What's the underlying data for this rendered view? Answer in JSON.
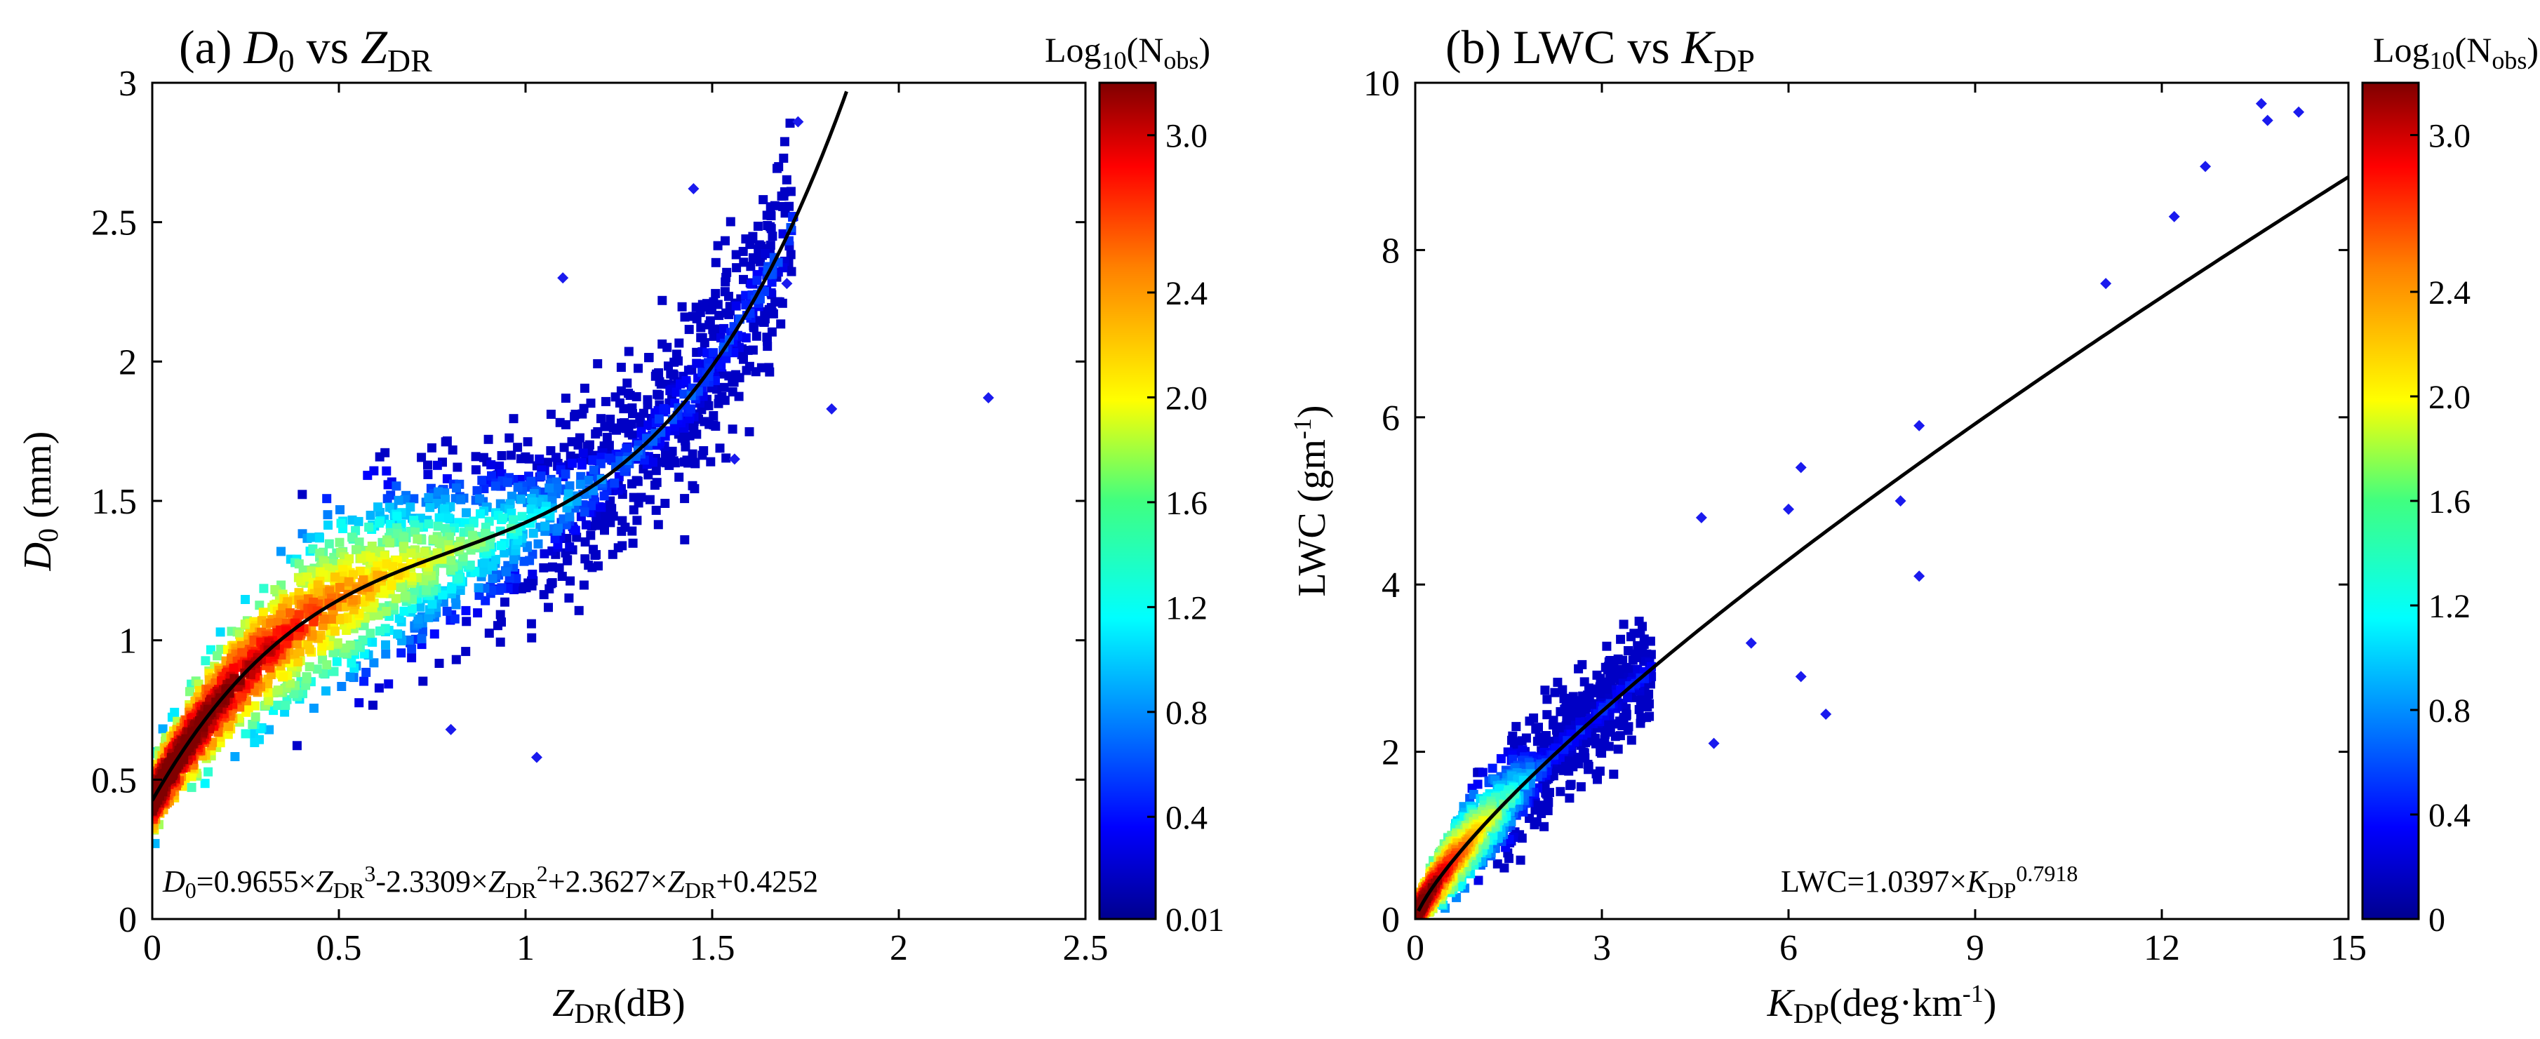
{
  "chart_data": [
    {
      "type": "scatter",
      "panel": "(a)",
      "title": {
        "prefix": "(a) ",
        "a": "D",
        "a_sub": "0",
        "mid": " vs ",
        "b": "Z",
        "b_sub": "DR"
      },
      "xlabel": {
        "main": "Z",
        "sub": "DR",
        "rest": "(dB)"
      },
      "ylabel": {
        "main": "D",
        "sub": "0",
        "rest": " (mm)"
      },
      "xlim": [
        0,
        2.5
      ],
      "ylim": [
        0,
        3
      ],
      "xticks": [
        0,
        0.5,
        1,
        1.5,
        2,
        2.5
      ],
      "xtick_labels": [
        "0",
        "0.5",
        "1",
        "1.5",
        "2",
        "2.5"
      ],
      "yticks": [
        0,
        0.5,
        1,
        1.5,
        2,
        2.5,
        3
      ],
      "ytick_labels": [
        "0",
        "0.5",
        "1",
        "1.5",
        "2",
        "2.5",
        "3"
      ],
      "fit": {
        "kind": "cubic",
        "coefficients": [
          0.9655,
          -2.3309,
          2.3627,
          0.4252
        ],
        "x_range": [
          0,
          1.86
        ]
      },
      "equation": {
        "p1": "D",
        "p1s": "0",
        "p2": "=0.9655×",
        "p3": "Z",
        "p3s": "DR",
        "p3p": "3",
        "p4": "-2.3309×",
        "p5": "Z",
        "p5s": "DR",
        "p5p": "2",
        "p6": "+2.3627×",
        "p7": "Z",
        "p7s": "DR",
        "p8": "+0.4252"
      },
      "density_note": "2D histogram of observation counts colored by Log10(Nobs); dense core along the fit, scattered outliers",
      "outliers": [
        [
          2.24,
          1.87
        ],
        [
          1.73,
          2.86
        ],
        [
          1.45,
          2.62
        ],
        [
          1.7,
          2.28
        ],
        [
          1.1,
          2.3
        ],
        [
          1.03,
          0.58
        ],
        [
          0.8,
          0.68
        ],
        [
          1.56,
          1.65
        ],
        [
          1.82,
          1.83
        ]
      ],
      "colorbar": {
        "title": "Log",
        "title_sub": "10",
        "title_mid": "(N",
        "title_sub2": "obs",
        "title_end": ")",
        "range": [
          0.01,
          3.2
        ],
        "ticks": [
          0.01,
          0.4,
          0.8,
          1.2,
          1.6,
          2.0,
          2.4,
          3.0
        ],
        "tick_labels": [
          "0.01",
          "0.4",
          "0.8",
          "1.2",
          "1.6",
          "2.0",
          "2.4",
          "3.0"
        ]
      }
    },
    {
      "type": "scatter",
      "panel": "(b)",
      "title": {
        "prefix": "(b) LWC vs ",
        "a": "K",
        "a_sub": "DP"
      },
      "xlabel": {
        "main": "K",
        "sub": "DP",
        "rest": "(deg·km",
        "sup": "-1",
        "end": ")"
      },
      "ylabel": {
        "main": "LWC (gm",
        "sup": "-1",
        "end": ")"
      },
      "xlim": [
        0,
        15
      ],
      "ylim": [
        0,
        10
      ],
      "xticks": [
        0,
        3,
        6,
        9,
        12,
        15
      ],
      "xtick_labels": [
        "0",
        "3",
        "6",
        "9",
        "12",
        "15"
      ],
      "yticks": [
        0,
        2,
        4,
        6,
        8,
        10
      ],
      "ytick_labels": [
        "0",
        "2",
        "4",
        "6",
        "8",
        "10"
      ],
      "fit": {
        "kind": "power",
        "a": 1.0397,
        "b": 0.7918,
        "x_range": [
          0.05,
          15
        ]
      },
      "equation": {
        "p1": "LWC=1.0397×",
        "p2": "K",
        "p2s": "DP",
        "p2p": "0.7918"
      },
      "density_note": "2D histogram of observation counts colored by Log10(Nobs); dense core near origin, sparse points along fit",
      "outliers": [
        [
          13.6,
          9.75
        ],
        [
          14.2,
          9.65
        ],
        [
          13.7,
          9.55
        ],
        [
          12.7,
          9.0
        ],
        [
          12.2,
          8.4
        ],
        [
          11.1,
          7.6
        ],
        [
          8.1,
          5.9
        ],
        [
          8.1,
          4.1
        ],
        [
          7.8,
          5.0
        ],
        [
          6.6,
          2.45
        ],
        [
          6.2,
          5.4
        ],
        [
          6.0,
          4.9
        ],
        [
          4.6,
          4.8
        ],
        [
          5.4,
          3.3
        ],
        [
          6.2,
          2.9
        ],
        [
          4.8,
          2.1
        ]
      ],
      "colorbar": {
        "title": "Log",
        "title_sub": "10",
        "title_mid": "(N",
        "title_sub2": "obs",
        "title_end": ")",
        "range": [
          0,
          3.2
        ],
        "ticks": [
          0,
          0.4,
          0.8,
          1.2,
          1.6,
          2.0,
          2.4,
          3.0
        ],
        "tick_labels": [
          "0",
          "0.4",
          "0.8",
          "1.2",
          "1.6",
          "2.0",
          "2.4",
          "3.0"
        ]
      }
    }
  ],
  "colors": {
    "jet": [
      "#00008f",
      "#0000ff",
      "#0080ff",
      "#00ffff",
      "#80ff80",
      "#ffff00",
      "#ff8000",
      "#ff0000",
      "#800000"
    ],
    "fit_line": "#000000",
    "outlier": "#1a1aee"
  }
}
